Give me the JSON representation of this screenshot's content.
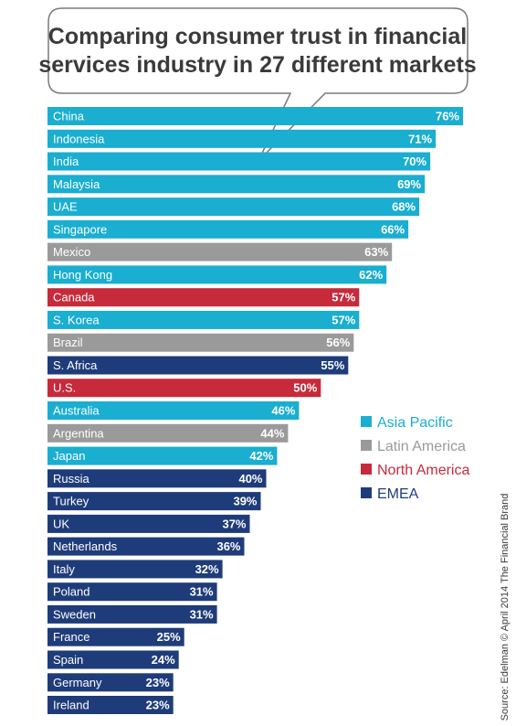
{
  "chart_data": {
    "type": "bar",
    "orientation": "horizontal",
    "title": "Comparing consumer trust in financial services industry in 27 different markets",
    "title_lines": [
      "Comparing consumer trust in financial",
      "services industry in 27 different markets"
    ],
    "value_suffix": "%",
    "xlim": [
      0,
      100
    ],
    "grid": false,
    "legend_placement": "middle-right",
    "legend": [
      {
        "name": "Asia Pacific",
        "color": "#1aaed0"
      },
      {
        "name": "Latin America",
        "color": "#9a9a9a"
      },
      {
        "name": "North America",
        "color": "#c72a3a"
      },
      {
        "name": "EMEA",
        "color": "#1f3c7a"
      }
    ],
    "bars": [
      {
        "label": "China",
        "value": 76,
        "region": "Asia Pacific"
      },
      {
        "label": "Indonesia",
        "value": 71,
        "region": "Asia Pacific"
      },
      {
        "label": "India",
        "value": 70,
        "region": "Asia Pacific"
      },
      {
        "label": "Malaysia",
        "value": 69,
        "region": "Asia Pacific"
      },
      {
        "label": "UAE",
        "value": 68,
        "region": "Asia Pacific"
      },
      {
        "label": "Singapore",
        "value": 66,
        "region": "Asia Pacific"
      },
      {
        "label": "Mexico",
        "value": 63,
        "region": "Latin America"
      },
      {
        "label": "Hong Kong",
        "value": 62,
        "region": "Asia Pacific"
      },
      {
        "label": "Canada",
        "value": 57,
        "region": "North America"
      },
      {
        "label": "S. Korea",
        "value": 57,
        "region": "Asia Pacific"
      },
      {
        "label": "Brazil",
        "value": 56,
        "region": "Latin America"
      },
      {
        "label": "S. Africa",
        "value": 55,
        "region": "EMEA"
      },
      {
        "label": "U.S.",
        "value": 50,
        "region": "North America"
      },
      {
        "label": "Australia",
        "value": 46,
        "region": "Asia Pacific"
      },
      {
        "label": "Argentina",
        "value": 44,
        "region": "Latin America"
      },
      {
        "label": "Japan",
        "value": 42,
        "region": "Asia Pacific"
      },
      {
        "label": "Russia",
        "value": 40,
        "region": "EMEA"
      },
      {
        "label": "Turkey",
        "value": 39,
        "region": "EMEA"
      },
      {
        "label": "UK",
        "value": 37,
        "region": "EMEA"
      },
      {
        "label": "Netherlands",
        "value": 36,
        "region": "EMEA"
      },
      {
        "label": "Italy",
        "value": 32,
        "region": "EMEA"
      },
      {
        "label": "Poland",
        "value": 31,
        "region": "EMEA"
      },
      {
        "label": "Sweden",
        "value": 31,
        "region": "EMEA"
      },
      {
        "label": "France",
        "value": 25,
        "region": "EMEA"
      },
      {
        "label": "Spain",
        "value": 24,
        "region": "EMEA"
      },
      {
        "label": "Germany",
        "value": 23,
        "region": "EMEA"
      },
      {
        "label": "Ireland",
        "value": 23,
        "region": "EMEA"
      }
    ],
    "source": "Source: Edelman © April 2014 The Financial Brand"
  }
}
